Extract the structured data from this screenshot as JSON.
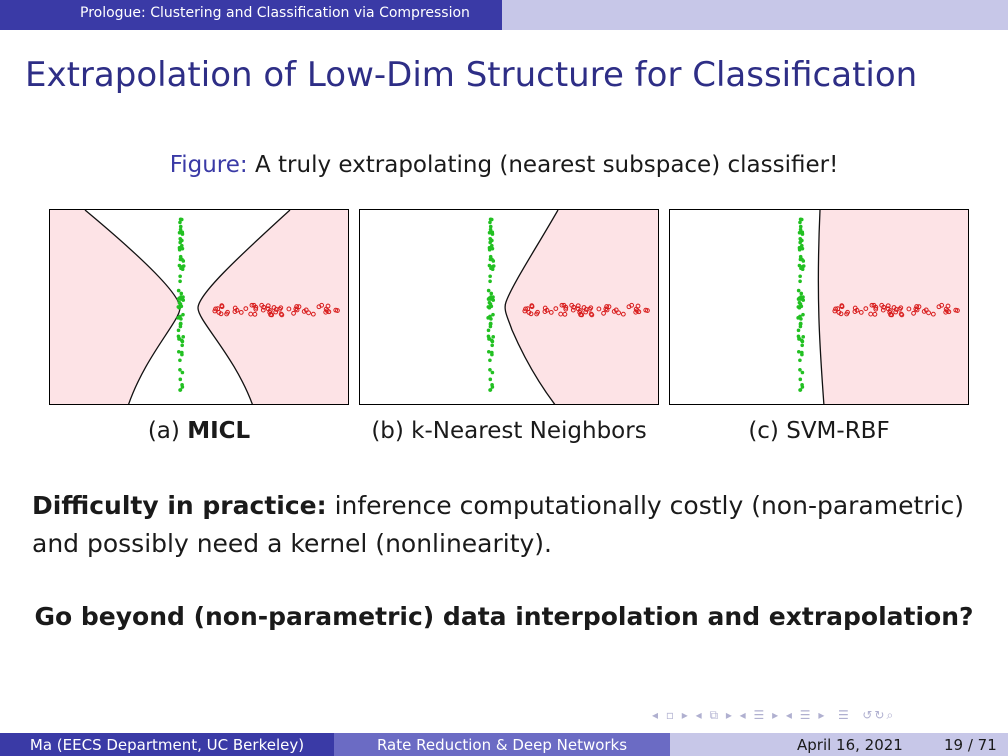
{
  "header": {
    "section": "Prologue: Clustering and Classification via Compression"
  },
  "title": "Extrapolation of Low-Dim Structure for Classification",
  "figure": {
    "prefix": "Figure:",
    "caption": "A truly extrapolating (nearest subspace) classifier!",
    "subfigures": [
      {
        "tag": "(a)",
        "name": "MICL"
      },
      {
        "tag": "(b)",
        "name": "k-Nearest Neighbors"
      },
      {
        "tag": "(c)",
        "name": "SVM-RBF"
      }
    ]
  },
  "body": {
    "lead": "Difficulty in practice:",
    "text": "inference computationally costly (non-parametric) and possibly need a kernel (nonlinearity)."
  },
  "question": "Go beyond (non-parametric) data interpolation and extrapolation?",
  "footer": {
    "author": "Ma  (EECS Department, UC Berkeley)",
    "title": "Rate Reduction & Deep Networks",
    "date": "April 16, 2021",
    "page": "19 / 71"
  },
  "colors": {
    "accent": "#3a3aa6",
    "region": "#fde3e6",
    "green_points": "#22c022",
    "red_points": "#d81c1c"
  }
}
